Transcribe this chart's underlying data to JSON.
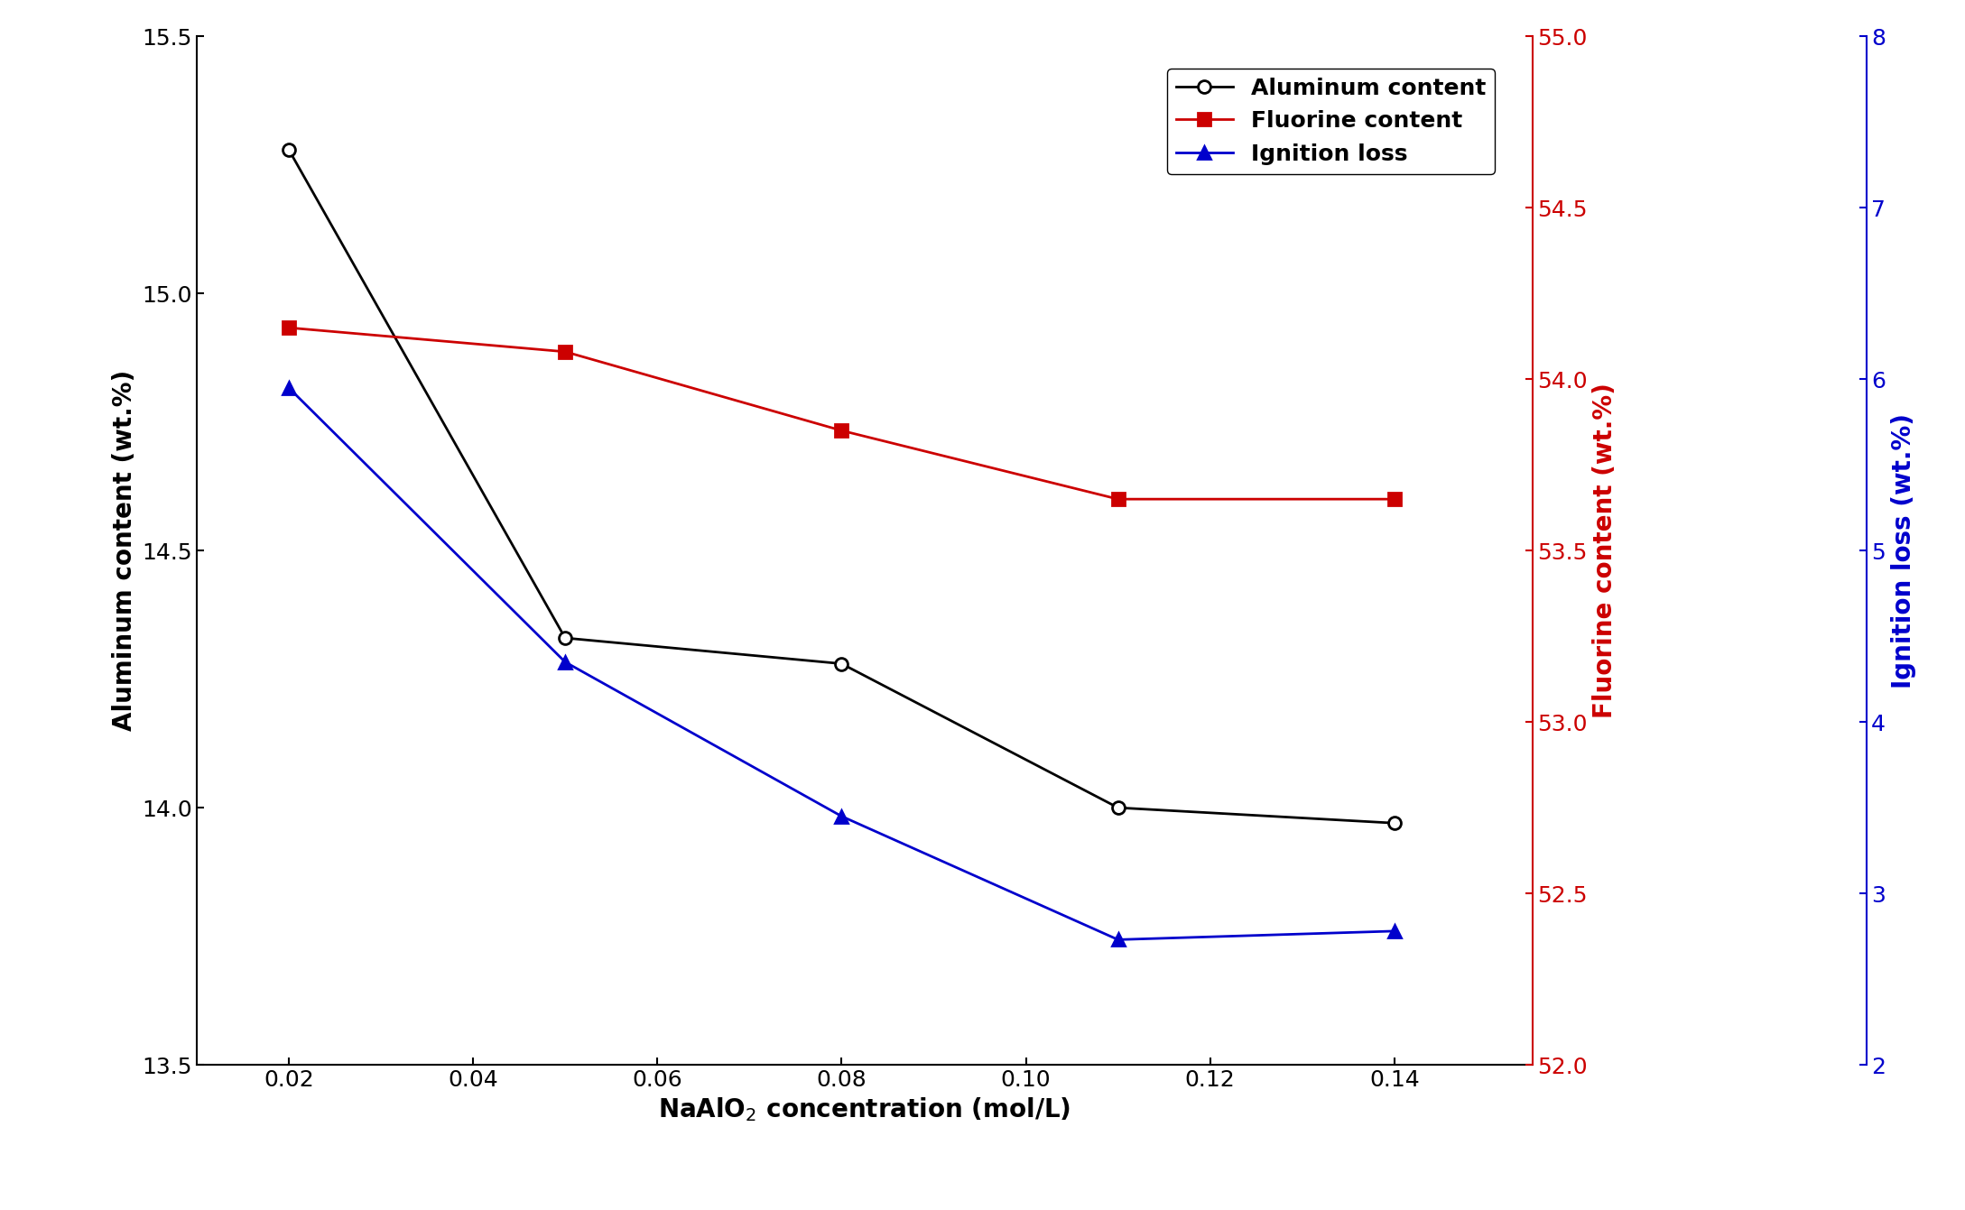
{
  "x": [
    0.02,
    0.05,
    0.08,
    0.11,
    0.14
  ],
  "aluminum_content": [
    15.28,
    14.33,
    14.28,
    14.0,
    13.97
  ],
  "fluorine_content": [
    54.15,
    54.08,
    53.85,
    53.65,
    53.65
  ],
  "ignition_loss": [
    5.95,
    4.35,
    3.45,
    2.73,
    2.78
  ],
  "al_color": "#000000",
  "fl_color": "#cc0000",
  "ig_color": "#0000cc",
  "al_ylim": [
    13.5,
    15.5
  ],
  "fl_ylim": [
    52.0,
    55.0
  ],
  "ig_ylim": [
    2.0,
    8.0
  ],
  "xlabel": "NaAlO$_2$ concentration (mol/L)",
  "ylabel_left": "Aluminum content (wt.%)",
  "ylabel_right_red": "Fluorine content (wt.%)",
  "ylabel_right_blue": "Ignition loss (wt.%)",
  "legend_aluminum": "Aluminum content",
  "legend_fluorine": "Fluorine content",
  "legend_ignition": "Ignition loss",
  "label_fontsize": 20,
  "tick_fontsize": 18,
  "legend_fontsize": 18,
  "background_color": "#ffffff",
  "xlim": [
    0.01,
    0.155
  ]
}
